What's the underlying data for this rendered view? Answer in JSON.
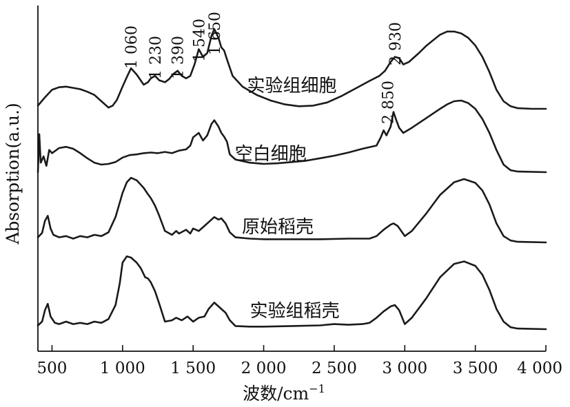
{
  "chart_data": {
    "type": "line",
    "title": "",
    "xlabel": "波数/cm",
    "xlabel_sup": "−1",
    "ylabel": "Absorption(a.u.)",
    "xlim": [
      400,
      4000
    ],
    "x_axis_reversed": false,
    "y_ticks_shown": false,
    "grid": false,
    "legend": "none (series labelled inline on the plot)",
    "x_ticks": [
      {
        "value": 500,
        "label": "500"
      },
      {
        "value": 1000,
        "label": "1 000"
      },
      {
        "value": 1500,
        "label": "1 500"
      },
      {
        "value": 2000,
        "label": "2 000"
      },
      {
        "value": 2500,
        "label": "2 500"
      },
      {
        "value": 3000,
        "label": "3 000"
      },
      {
        "value": 3500,
        "label": "3 500"
      },
      {
        "value": 4000,
        "label": "4 000"
      }
    ],
    "series": [
      {
        "name": "实验组细胞",
        "offset": 3.0,
        "label_x": 2200,
        "points": [
          [
            400,
            0.05
          ],
          [
            450,
            0.18
          ],
          [
            500,
            0.3
          ],
          [
            550,
            0.34
          ],
          [
            600,
            0.35
          ],
          [
            650,
            0.33
          ],
          [
            700,
            0.31
          ],
          [
            750,
            0.27
          ],
          [
            800,
            0.22
          ],
          [
            850,
            0.12
          ],
          [
            900,
            0.02
          ],
          [
            930,
            0.05
          ],
          [
            960,
            0.14
          ],
          [
            1000,
            0.35
          ],
          [
            1030,
            0.5
          ],
          [
            1060,
            0.64
          ],
          [
            1100,
            0.54
          ],
          [
            1150,
            0.38
          ],
          [
            1180,
            0.42
          ],
          [
            1200,
            0.48
          ],
          [
            1230,
            0.52
          ],
          [
            1260,
            0.45
          ],
          [
            1300,
            0.42
          ],
          [
            1330,
            0.47
          ],
          [
            1360,
            0.55
          ],
          [
            1390,
            0.6
          ],
          [
            1420,
            0.52
          ],
          [
            1450,
            0.48
          ],
          [
            1480,
            0.52
          ],
          [
            1510,
            0.7
          ],
          [
            1540,
            0.94
          ],
          [
            1570,
            0.82
          ],
          [
            1600,
            0.88
          ],
          [
            1630,
            1.15
          ],
          [
            1650,
            1.26
          ],
          [
            1680,
            1.12
          ],
          [
            1700,
            0.97
          ],
          [
            1720,
            0.92
          ],
          [
            1740,
            0.78
          ],
          [
            1780,
            0.52
          ],
          [
            1850,
            0.35
          ],
          [
            1950,
            0.22
          ],
          [
            2050,
            0.13
          ],
          [
            2150,
            0.07
          ],
          [
            2250,
            0.04
          ],
          [
            2350,
            0.05
          ],
          [
            2450,
            0.1
          ],
          [
            2550,
            0.2
          ],
          [
            2650,
            0.32
          ],
          [
            2750,
            0.44
          ],
          [
            2820,
            0.52
          ],
          [
            2860,
            0.6
          ],
          [
            2900,
            0.74
          ],
          [
            2930,
            0.82
          ],
          [
            2960,
            0.8
          ],
          [
            2990,
            0.7
          ],
          [
            3030,
            0.74
          ],
          [
            3100,
            0.88
          ],
          [
            3150,
            0.99
          ],
          [
            3200,
            1.08
          ],
          [
            3250,
            1.17
          ],
          [
            3300,
            1.22
          ],
          [
            3350,
            1.22
          ],
          [
            3400,
            1.19
          ],
          [
            3450,
            1.12
          ],
          [
            3500,
            1.0
          ],
          [
            3550,
            0.82
          ],
          [
            3600,
            0.58
          ],
          [
            3650,
            0.3
          ],
          [
            3700,
            0.12
          ],
          [
            3750,
            0.04
          ],
          [
            3800,
            0.01
          ],
          [
            3900,
            0.0
          ],
          [
            4000,
            0.0
          ]
        ]
      },
      {
        "name": "空白细胞",
        "offset": 2.0,
        "label_x": 2050,
        "points": [
          [
            400,
            0.0
          ],
          [
            410,
            0.6
          ],
          [
            420,
            0.15
          ],
          [
            440,
            0.25
          ],
          [
            460,
            0.1
          ],
          [
            480,
            0.35
          ],
          [
            500,
            0.3
          ],
          [
            550,
            0.38
          ],
          [
            600,
            0.4
          ],
          [
            650,
            0.37
          ],
          [
            700,
            0.3
          ],
          [
            750,
            0.22
          ],
          [
            800,
            0.15
          ],
          [
            850,
            0.12
          ],
          [
            900,
            0.13
          ],
          [
            950,
            0.16
          ],
          [
            1000,
            0.23
          ],
          [
            1050,
            0.27
          ],
          [
            1100,
            0.28
          ],
          [
            1150,
            0.3
          ],
          [
            1200,
            0.31
          ],
          [
            1250,
            0.3
          ],
          [
            1300,
            0.32
          ],
          [
            1350,
            0.3
          ],
          [
            1400,
            0.34
          ],
          [
            1450,
            0.36
          ],
          [
            1480,
            0.42
          ],
          [
            1500,
            0.55
          ],
          [
            1540,
            0.62
          ],
          [
            1570,
            0.5
          ],
          [
            1600,
            0.58
          ],
          [
            1630,
            0.76
          ],
          [
            1650,
            0.82
          ],
          [
            1680,
            0.72
          ],
          [
            1700,
            0.62
          ],
          [
            1720,
            0.56
          ],
          [
            1740,
            0.48
          ],
          [
            1760,
            0.28
          ],
          [
            1800,
            0.2
          ],
          [
            1900,
            0.15
          ],
          [
            2000,
            0.13
          ],
          [
            2100,
            0.14
          ],
          [
            2200,
            0.16
          ],
          [
            2300,
            0.18
          ],
          [
            2400,
            0.22
          ],
          [
            2500,
            0.26
          ],
          [
            2600,
            0.31
          ],
          [
            2700,
            0.37
          ],
          [
            2800,
            0.42
          ],
          [
            2830,
            0.55
          ],
          [
            2850,
            0.66
          ],
          [
            2870,
            0.58
          ],
          [
            2900,
            0.72
          ],
          [
            2920,
            0.95
          ],
          [
            2940,
            0.82
          ],
          [
            2960,
            0.7
          ],
          [
            2990,
            0.62
          ],
          [
            3050,
            0.7
          ],
          [
            3150,
            0.85
          ],
          [
            3250,
            1.0
          ],
          [
            3300,
            1.07
          ],
          [
            3350,
            1.12
          ],
          [
            3400,
            1.13
          ],
          [
            3450,
            1.09
          ],
          [
            3500,
            1.0
          ],
          [
            3550,
            0.84
          ],
          [
            3600,
            0.62
          ],
          [
            3650,
            0.35
          ],
          [
            3700,
            0.12
          ],
          [
            3750,
            0.03
          ],
          [
            3800,
            0.01
          ],
          [
            4000,
            0.0
          ]
        ]
      },
      {
        "name": "原始稻壳",
        "offset": 1.0,
        "label_x": 2100,
        "points": [
          [
            400,
            0.08
          ],
          [
            430,
            0.15
          ],
          [
            450,
            0.34
          ],
          [
            470,
            0.42
          ],
          [
            490,
            0.22
          ],
          [
            510,
            0.12
          ],
          [
            550,
            0.08
          ],
          [
            600,
            0.1
          ],
          [
            650,
            0.06
          ],
          [
            700,
            0.1
          ],
          [
            750,
            0.08
          ],
          [
            800,
            0.12
          ],
          [
            850,
            0.1
          ],
          [
            900,
            0.16
          ],
          [
            950,
            0.4
          ],
          [
            1000,
            0.78
          ],
          [
            1030,
            0.95
          ],
          [
            1060,
            1.02
          ],
          [
            1100,
            0.98
          ],
          [
            1150,
            0.86
          ],
          [
            1180,
            0.76
          ],
          [
            1200,
            0.7
          ],
          [
            1230,
            0.58
          ],
          [
            1260,
            0.42
          ],
          [
            1300,
            0.18
          ],
          [
            1350,
            0.12
          ],
          [
            1380,
            0.18
          ],
          [
            1400,
            0.14
          ],
          [
            1450,
            0.2
          ],
          [
            1480,
            0.14
          ],
          [
            1500,
            0.22
          ],
          [
            1540,
            0.18
          ],
          [
            1580,
            0.26
          ],
          [
            1620,
            0.34
          ],
          [
            1650,
            0.4
          ],
          [
            1680,
            0.36
          ],
          [
            1700,
            0.38
          ],
          [
            1730,
            0.3
          ],
          [
            1760,
            0.16
          ],
          [
            1800,
            0.08
          ],
          [
            1900,
            0.06
          ],
          [
            2000,
            0.05
          ],
          [
            2200,
            0.05
          ],
          [
            2400,
            0.05
          ],
          [
            2600,
            0.06
          ],
          [
            2750,
            0.06
          ],
          [
            2800,
            0.1
          ],
          [
            2850,
            0.2
          ],
          [
            2900,
            0.28
          ],
          [
            2920,
            0.3
          ],
          [
            2950,
            0.26
          ],
          [
            3000,
            0.1
          ],
          [
            3050,
            0.18
          ],
          [
            3150,
            0.45
          ],
          [
            3250,
            0.75
          ],
          [
            3350,
            0.95
          ],
          [
            3420,
            1.0
          ],
          [
            3500,
            0.94
          ],
          [
            3550,
            0.82
          ],
          [
            3600,
            0.6
          ],
          [
            3650,
            0.3
          ],
          [
            3700,
            0.1
          ],
          [
            3750,
            0.03
          ],
          [
            3800,
            0.01
          ],
          [
            4000,
            0.0
          ]
        ]
      },
      {
        "name": "实验组稻壳",
        "offset": 0.0,
        "label_x": 2220,
        "points": [
          [
            400,
            0.06
          ],
          [
            430,
            0.12
          ],
          [
            450,
            0.3
          ],
          [
            470,
            0.4
          ],
          [
            490,
            0.2
          ],
          [
            520,
            0.1
          ],
          [
            550,
            0.08
          ],
          [
            600,
            0.12
          ],
          [
            650,
            0.08
          ],
          [
            700,
            0.1
          ],
          [
            750,
            0.08
          ],
          [
            800,
            0.12
          ],
          [
            850,
            0.1
          ],
          [
            900,
            0.16
          ],
          [
            950,
            0.38
          ],
          [
            980,
            0.72
          ],
          [
            1000,
            1.05
          ],
          [
            1030,
            1.15
          ],
          [
            1060,
            1.13
          ],
          [
            1100,
            1.05
          ],
          [
            1130,
            0.96
          ],
          [
            1160,
            0.82
          ],
          [
            1180,
            0.8
          ],
          [
            1200,
            0.74
          ],
          [
            1230,
            0.6
          ],
          [
            1260,
            0.4
          ],
          [
            1300,
            0.12
          ],
          [
            1350,
            0.14
          ],
          [
            1380,
            0.18
          ],
          [
            1420,
            0.14
          ],
          [
            1460,
            0.2
          ],
          [
            1500,
            0.12
          ],
          [
            1540,
            0.18
          ],
          [
            1580,
            0.2
          ],
          [
            1610,
            0.32
          ],
          [
            1650,
            0.42
          ],
          [
            1680,
            0.36
          ],
          [
            1700,
            0.32
          ],
          [
            1730,
            0.26
          ],
          [
            1760,
            0.14
          ],
          [
            1800,
            0.05
          ],
          [
            1900,
            0.04
          ],
          [
            2000,
            0.04
          ],
          [
            2200,
            0.05
          ],
          [
            2400,
            0.06
          ],
          [
            2500,
            0.08
          ],
          [
            2600,
            0.07
          ],
          [
            2700,
            0.08
          ],
          [
            2750,
            0.1
          ],
          [
            2800,
            0.18
          ],
          [
            2850,
            0.28
          ],
          [
            2900,
            0.36
          ],
          [
            2930,
            0.38
          ],
          [
            2960,
            0.3
          ],
          [
            3000,
            0.08
          ],
          [
            3050,
            0.18
          ],
          [
            3150,
            0.48
          ],
          [
            3250,
            0.82
          ],
          [
            3350,
            1.03
          ],
          [
            3420,
            1.07
          ],
          [
            3500,
            1.0
          ],
          [
            3550,
            0.86
          ],
          [
            3600,
            0.62
          ],
          [
            3650,
            0.32
          ],
          [
            3700,
            0.12
          ],
          [
            3750,
            0.03
          ],
          [
            3800,
            0.01
          ],
          [
            4000,
            0.0
          ]
        ]
      }
    ],
    "annotations": [
      {
        "text": "1 060",
        "x": 1060,
        "series": "实验组细胞"
      },
      {
        "text": "1 230",
        "x": 1230,
        "series": "实验组细胞"
      },
      {
        "text": "1 390",
        "x": 1390,
        "series": "实验组细胞"
      },
      {
        "text": "1 540",
        "x": 1540,
        "series": "实验组细胞"
      },
      {
        "text": "1 650",
        "x": 1650,
        "series": "实验组细胞"
      },
      {
        "text": "2 930",
        "x": 2930,
        "series": "实验组细胞"
      },
      {
        "text": "2 850",
        "x": 2880,
        "series": "空白细胞"
      }
    ]
  }
}
